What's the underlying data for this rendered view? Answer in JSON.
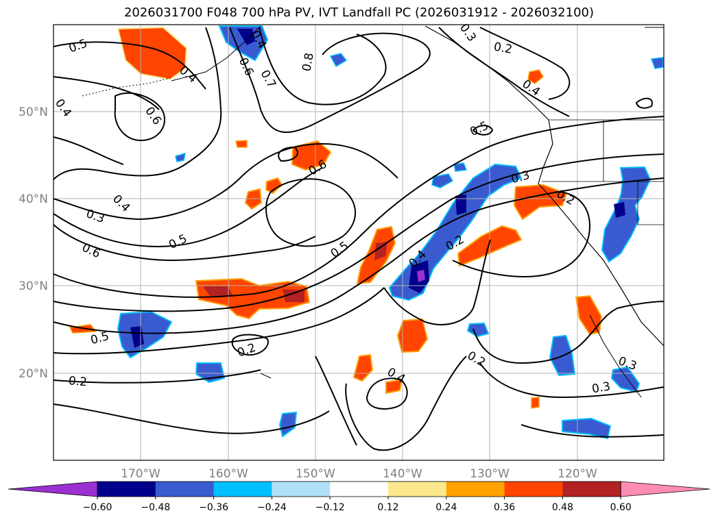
{
  "title": "2026031700 F048 700 hPa PV, IVT Landfall PC (2026031912 - 2026032100)",
  "axes": {
    "lat_labels": [
      "50°N",
      "40°N",
      "30°N",
      "20°N"
    ],
    "lon_labels": [
      "170°W",
      "160°W",
      "150°W",
      "140°W",
      "130°W",
      "120°W"
    ]
  },
  "colorbar": {
    "ticks": [
      "−0.60",
      "−0.48",
      "−0.36",
      "−0.24",
      "−0.12",
      "0.12",
      "0.24",
      "0.36",
      "0.48",
      "0.60"
    ],
    "colors": [
      "#9b30d0",
      "#00008b",
      "#3a5bd0",
      "#00bfff",
      "#afe0f8",
      "#ffffff",
      "#fbe88c",
      "#ffa200",
      "#ff4500",
      "#b22222",
      "#ff8cb4"
    ]
  },
  "contour_labels": [
    "0.5",
    "0.4",
    "0.4",
    "0.6",
    "0.4",
    "0.6",
    "0.7",
    "0.8",
    "0.3",
    "0.2",
    "0.4",
    "0.5",
    "0.6",
    "0.3",
    "0.4",
    "0.3",
    "0.5",
    "0.6",
    "0.5",
    "0.4",
    "0.2",
    "0.2",
    "0.5",
    "0.2",
    "0.4",
    "0.2",
    "0.3",
    "0.3",
    "0.2"
  ]
}
